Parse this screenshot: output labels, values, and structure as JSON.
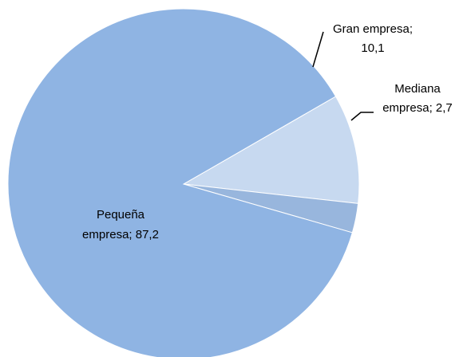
{
  "chart_data": {
    "type": "pie",
    "slices": [
      {
        "label_lines": [
          "Gran empresa;",
          "10,1"
        ],
        "value": 10.1,
        "color": "#c7d9f0"
      },
      {
        "label_lines": [
          "Mediana",
          "empresa; 2,7"
        ],
        "value": 2.7,
        "color": "#98b6dd"
      },
      {
        "label_lines": [
          "Pequeña",
          "empresa; 87,2"
        ],
        "value": 87.2,
        "color": "#8fb4e3"
      }
    ]
  }
}
